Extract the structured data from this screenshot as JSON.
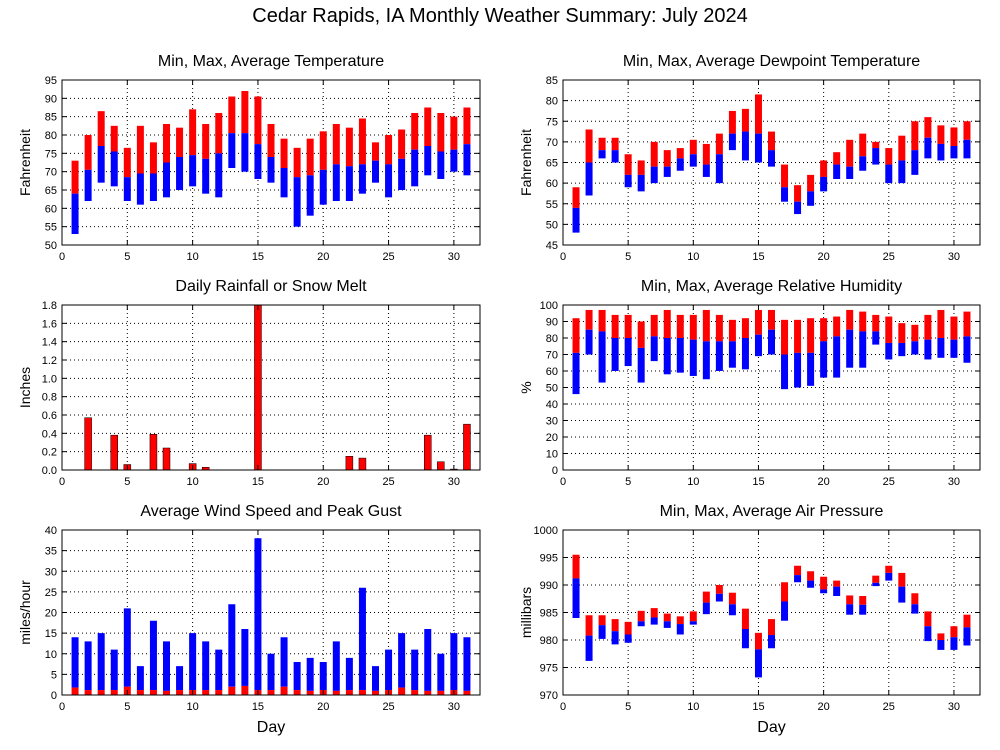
{
  "title": "Cedar Rapids, IA Monthly Weather Summary: July 2024",
  "colors": {
    "upper": "#ff0000",
    "lower": "#0000ff",
    "grid": "#000000",
    "frame": "#000000"
  },
  "chart_data": [
    {
      "id": "temperature",
      "type": "floating-bar",
      "title": "Min, Max, Average Temperature",
      "xlabel": "",
      "ylabel": "Fahrenheit",
      "xlim": [
        0,
        32
      ],
      "ylim": [
        50,
        95
      ],
      "xticks": [
        0,
        5,
        10,
        15,
        20,
        25,
        30
      ],
      "yticks": [
        50,
        55,
        60,
        65,
        70,
        75,
        80,
        85,
        90,
        95
      ],
      "x": [
        1,
        2,
        3,
        4,
        5,
        6,
        7,
        8,
        9,
        10,
        11,
        12,
        13,
        14,
        15,
        16,
        17,
        18,
        19,
        20,
        21,
        22,
        23,
        24,
        25,
        26,
        27,
        28,
        29,
        30,
        31
      ],
      "min": [
        53,
        62,
        67,
        66,
        62,
        61,
        62,
        63,
        65,
        66,
        64,
        63,
        71,
        70,
        68,
        67,
        63,
        55,
        58,
        61,
        62,
        62,
        64,
        67,
        63,
        65,
        66,
        69,
        68,
        70,
        69
      ],
      "avg": [
        64,
        70.5,
        77,
        75.5,
        68.5,
        69.5,
        69.5,
        72.5,
        74,
        74.5,
        73.5,
        75,
        80.5,
        80.5,
        77.5,
        74,
        71,
        68.5,
        69,
        70.5,
        72,
        71.5,
        72,
        73,
        72,
        73.5,
        76,
        77,
        75.5,
        76,
        77.5
      ],
      "max": [
        73,
        80,
        86.5,
        82.5,
        76.5,
        82.5,
        78,
        83,
        82,
        87,
        83,
        86,
        90.5,
        92,
        90.5,
        83,
        79,
        76.5,
        79,
        81,
        83,
        82,
        84.5,
        78,
        80,
        81.5,
        86,
        87.5,
        86,
        85,
        87.5
      ]
    },
    {
      "id": "dewpoint",
      "type": "floating-bar",
      "title": "Min, Max, Average Dewpoint Temperature",
      "xlabel": "",
      "ylabel": "Fahrenheit",
      "xlim": [
        0,
        32
      ],
      "ylim": [
        45,
        85
      ],
      "xticks": [
        0,
        5,
        10,
        15,
        20,
        25,
        30
      ],
      "yticks": [
        45,
        50,
        55,
        60,
        65,
        70,
        75,
        80,
        85
      ],
      "x": [
        1,
        2,
        3,
        4,
        5,
        6,
        7,
        8,
        9,
        10,
        11,
        12,
        13,
        14,
        15,
        16,
        17,
        18,
        19,
        20,
        21,
        22,
        23,
        24,
        25,
        26,
        27,
        28,
        29,
        30,
        31
      ],
      "min": [
        48,
        57,
        66,
        65,
        59,
        58,
        60,
        61.5,
        63,
        64,
        61.5,
        60,
        68,
        65.5,
        65,
        64,
        55.5,
        52.5,
        54.5,
        58,
        61,
        61,
        63,
        64.5,
        60,
        60,
        62,
        66,
        65.5,
        66,
        66
      ],
      "avg": [
        54,
        65,
        68,
        68,
        62,
        62,
        64,
        64,
        66,
        67,
        64.5,
        67,
        72,
        72.5,
        72,
        68,
        59,
        55.5,
        58,
        61.5,
        64.5,
        64,
        66.5,
        68.5,
        64.5,
        65.5,
        68,
        71,
        69.5,
        69,
        70.5
      ],
      "max": [
        59,
        73,
        71,
        71,
        67,
        65.5,
        70,
        68,
        68.5,
        70.5,
        69.5,
        72,
        77.5,
        78,
        81.5,
        72.5,
        64.5,
        59.5,
        62,
        65.5,
        67.5,
        70.5,
        72,
        70,
        68.5,
        71.5,
        75,
        76,
        74,
        73.5,
        75
      ]
    },
    {
      "id": "rainfall",
      "type": "bar",
      "title": "Daily Rainfall or Snow Melt",
      "xlabel": "",
      "ylabel": "Inches",
      "xlim": [
        0,
        32
      ],
      "ylim": [
        0,
        1.8
      ],
      "xticks": [
        0,
        5,
        10,
        15,
        20,
        25,
        30
      ],
      "yticks": [
        0.0,
        0.2,
        0.4,
        0.6,
        0.8,
        1.0,
        1.2,
        1.4,
        1.6,
        1.8
      ],
      "ytick_labels": [
        "0.0",
        "0.2",
        "0.4",
        "0.6",
        "0.8",
        "1.0",
        "1.2",
        "1.4",
        "1.6",
        "1.8"
      ],
      "x": [
        1,
        2,
        3,
        4,
        5,
        6,
        7,
        8,
        9,
        10,
        11,
        12,
        13,
        14,
        15,
        16,
        17,
        18,
        19,
        20,
        21,
        22,
        23,
        24,
        25,
        26,
        27,
        28,
        29,
        30,
        31
      ],
      "values": [
        0,
        0.57,
        0,
        0.38,
        0.06,
        0,
        0.39,
        0.24,
        0,
        0.07,
        0.03,
        0,
        0,
        0,
        1.8,
        0,
        0,
        0,
        0,
        0,
        0,
        0.15,
        0.13,
        0,
        0,
        0,
        0,
        0.38,
        0.09,
        0.01,
        0.5
      ]
    },
    {
      "id": "humidity",
      "type": "floating-bar",
      "title": "Min, Max, Average Relative Humidity",
      "xlabel": "",
      "ylabel": "%",
      "xlim": [
        0,
        32
      ],
      "ylim": [
        0,
        100
      ],
      "xticks": [
        0,
        5,
        10,
        15,
        20,
        25,
        30
      ],
      "yticks": [
        0,
        10,
        20,
        30,
        40,
        50,
        60,
        70,
        80,
        90,
        100
      ],
      "x": [
        1,
        2,
        3,
        4,
        5,
        6,
        7,
        8,
        9,
        10,
        11,
        12,
        13,
        14,
        15,
        16,
        17,
        18,
        19,
        20,
        21,
        22,
        23,
        24,
        25,
        26,
        27,
        28,
        29,
        30,
        31
      ],
      "min": [
        46,
        70,
        53,
        60,
        63,
        53,
        66,
        58,
        59,
        57,
        55,
        60,
        62,
        61,
        69,
        70,
        49,
        50,
        51,
        56,
        56,
        62,
        62,
        76,
        67,
        69,
        70,
        67,
        68,
        68,
        65
      ],
      "avg": [
        71,
        85,
        84,
        80,
        80,
        74,
        81,
        80,
        80,
        79,
        78,
        78,
        78,
        80,
        82,
        85,
        70,
        71,
        71,
        78,
        81,
        85,
        84,
        84,
        77,
        77,
        78,
        79,
        80,
        79,
        81
      ],
      "max": [
        92,
        97,
        97,
        94,
        94,
        90,
        94,
        97,
        94,
        94,
        97,
        94,
        91,
        92,
        97,
        97,
        91,
        91,
        92,
        92,
        93,
        97,
        96,
        94,
        93,
        89,
        88,
        94,
        97,
        93,
        96
      ]
    },
    {
      "id": "wind",
      "type": "stacked-bar",
      "title": "Average Wind Speed and Peak Gust",
      "xlabel": "Day",
      "ylabel": "miles/hour",
      "xlim": [
        0,
        32
      ],
      "ylim": [
        0,
        40
      ],
      "xticks": [
        0,
        5,
        10,
        15,
        20,
        25,
        30
      ],
      "yticks": [
        0,
        5,
        10,
        15,
        20,
        25,
        30,
        35,
        40
      ],
      "x": [
        1,
        2,
        3,
        4,
        5,
        6,
        7,
        8,
        9,
        10,
        11,
        12,
        13,
        14,
        15,
        16,
        17,
        18,
        19,
        20,
        21,
        22,
        23,
        24,
        25,
        26,
        27,
        28,
        29,
        30,
        31
      ],
      "avg_speed": [
        1.8,
        1.2,
        1.2,
        1.2,
        2,
        1.2,
        1.2,
        1,
        1.2,
        1.2,
        1.2,
        1.2,
        2,
        2.2,
        1.2,
        1.2,
        2,
        1.2,
        1,
        1.2,
        1,
        1.2,
        1.2,
        1,
        1.2,
        1.8,
        1.2,
        1,
        1,
        1.2,
        1
      ],
      "peak_gust": [
        14,
        13,
        15,
        11,
        21,
        7,
        18,
        13,
        7,
        15,
        13,
        11,
        22,
        16,
        38,
        10,
        14,
        8,
        9,
        8,
        13,
        9,
        26,
        7,
        11,
        15,
        11,
        16,
        10,
        15,
        14
      ]
    },
    {
      "id": "pressure",
      "type": "floating-bar",
      "title": "Min, Max, Average Air Pressure",
      "xlabel": "Day",
      "ylabel": "millibars",
      "xlim": [
        0,
        32
      ],
      "ylim": [
        970,
        1000
      ],
      "xticks": [
        0,
        5,
        10,
        15,
        20,
        25,
        30
      ],
      "yticks": [
        970,
        975,
        980,
        985,
        990,
        995,
        1000
      ],
      "x": [
        1,
        2,
        3,
        4,
        5,
        6,
        7,
        8,
        9,
        10,
        11,
        12,
        13,
        14,
        15,
        16,
        17,
        18,
        19,
        20,
        21,
        22,
        23,
        24,
        25,
        26,
        27,
        28,
        29,
        30,
        31
      ],
      "min": [
        984,
        976.2,
        980.2,
        979.2,
        979.5,
        982.5,
        982.8,
        982.2,
        981,
        982.8,
        984.7,
        987,
        984.5,
        978.5,
        973.2,
        978.5,
        983.5,
        990.5,
        989.5,
        988.5,
        988,
        984.6,
        984.6,
        989.8,
        990.8,
        986.8,
        984.8,
        979.8,
        978.2,
        978.2,
        979
      ],
      "avg": [
        991.2,
        980.8,
        982.7,
        981.6,
        981,
        983.4,
        984.1,
        983.4,
        982.9,
        983.4,
        986.8,
        988.4,
        986.5,
        982,
        978.3,
        980.9,
        987,
        991.8,
        990.8,
        989.2,
        989.7,
        986.5,
        986.4,
        990.4,
        992.2,
        989.7,
        986.5,
        982.5,
        980,
        980.5,
        982.3
      ],
      "max": [
        995.5,
        984.5,
        984.5,
        983.8,
        983.3,
        985.3,
        985.8,
        984.8,
        984.3,
        985.2,
        988.8,
        990,
        988.6,
        985.7,
        981.3,
        983.8,
        990.5,
        993.5,
        992.5,
        991.5,
        990.8,
        988.1,
        988,
        991.7,
        993.5,
        992.2,
        988.5,
        985.2,
        981.2,
        982.5,
        984.6
      ]
    }
  ]
}
